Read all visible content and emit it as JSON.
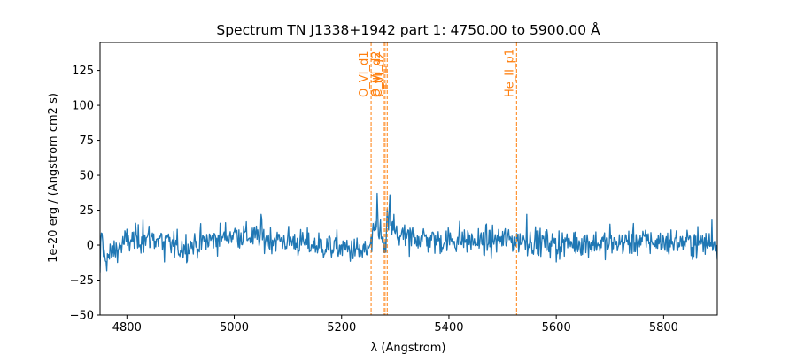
{
  "chart_data": {
    "type": "line",
    "title": "Spectrum TN J1338+1942 part 1: 4750.00 to 5900.00 Å",
    "xlabel": "λ (Angstrom)",
    "ylabel": "1e-20 erg / (Angstrom cm2 s)",
    "xlim": [
      4750,
      5900
    ],
    "ylim": [
      -50,
      145
    ],
    "xticks": [
      4800,
      5000,
      5200,
      5400,
      5600,
      5800
    ],
    "yticks": [
      -50,
      -25,
      0,
      25,
      50,
      75,
      100,
      125
    ],
    "grid": false,
    "colors": {
      "spectrum": "#1f77b4",
      "lines": "#ff7f0e"
    },
    "spectrum": {
      "x_start": 4750,
      "x_end": 5900,
      "x_step": 1.25,
      "noise_amplitude": 5,
      "anchor_points": [
        [
          4750,
          -26
        ],
        [
          4752,
          12
        ],
        [
          4758,
          -10
        ],
        [
          4800,
          3
        ],
        [
          4850,
          5
        ],
        [
          4900,
          -2
        ],
        [
          4950,
          3
        ],
        [
          5000,
          8
        ],
        [
          5050,
          5
        ],
        [
          5100,
          3
        ],
        [
          5150,
          0
        ],
        [
          5200,
          -2
        ],
        [
          5240,
          -5
        ],
        [
          5250,
          -4
        ],
        [
          5258,
          2
        ],
        [
          5262,
          10
        ],
        [
          5267,
          20
        ],
        [
          5270,
          12
        ],
        [
          5275,
          4
        ],
        [
          5280,
          -3
        ],
        [
          5285,
          8
        ],
        [
          5289,
          18
        ],
        [
          5293,
          12
        ],
        [
          5300,
          8
        ],
        [
          5320,
          5
        ],
        [
          5340,
          6
        ],
        [
          5380,
          3
        ],
        [
          5420,
          4
        ],
        [
          5460,
          2
        ],
        [
          5500,
          4
        ],
        [
          5550,
          3
        ],
        [
          5600,
          1
        ],
        [
          5650,
          2
        ],
        [
          5700,
          1
        ],
        [
          5750,
          3
        ],
        [
          5800,
          2
        ],
        [
          5850,
          2
        ],
        [
          5900,
          1
        ]
      ],
      "spikes": [
        [
          5266,
          37
        ],
        [
          5290,
          36
        ],
        [
          5285,
          26
        ],
        [
          5298,
          22
        ],
        [
          5050,
          22
        ],
        [
          5545,
          22
        ],
        [
          4830,
          18
        ],
        [
          5420,
          17
        ],
        [
          5700,
          15
        ],
        [
          5890,
          18
        ],
        [
          5282,
          -5
        ],
        [
          5326,
          -8
        ],
        [
          5600,
          -12
        ],
        [
          4870,
          -12
        ],
        [
          4768,
          -10
        ]
      ]
    },
    "emission_lines": [
      {
        "name": "O_VI_d1",
        "x": 5255
      },
      {
        "name": "O_VI_d2",
        "x": 5278
      },
      {
        "name": "C_III",
        "x": 5281
      },
      {
        "name": "C_VI_d2",
        "x": 5285
      },
      {
        "name": "He_II_p1",
        "x": 5526
      }
    ]
  }
}
